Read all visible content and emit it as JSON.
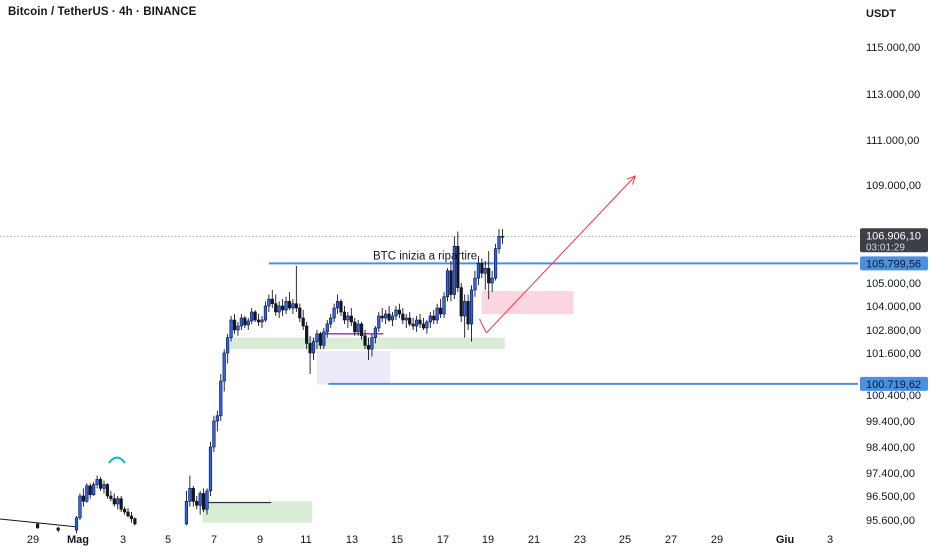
{
  "header": {
    "title": "Bitcoin / TetherUS · 4h · BINANCE",
    "currency": "USDT"
  },
  "colors": {
    "bull": "#2962ff",
    "bear": "#131722",
    "level_line": "#4a90e2",
    "level_tag_bg": "#4a90e2",
    "last_tag_bg": "#3c3f47",
    "arrow": "#f23645",
    "support_zone": "#d8ecd6",
    "supply_zone": "#fbd6e1",
    "range_zone": "#ece9f8",
    "range_line": "#9c27b0",
    "curve": "#00bcd4"
  },
  "chart_data": {
    "type": "candlestick",
    "symbol": "Bitcoin / TetherUS",
    "timeframe": "4h",
    "exchange": "BINANCE",
    "x_axis_ticks": [
      "29",
      "Mag",
      "3",
      "5",
      "7",
      "9",
      "11",
      "13",
      "15",
      "17",
      "19",
      "21",
      "23",
      "25",
      "27",
      "29",
      "Giu",
      "3"
    ],
    "y_axis_ticks": [
      "115.000,00",
      "113.000,00",
      "111.000,00",
      "109.000,00",
      "105.000,00",
      "104.000,00",
      "102.800,00",
      "101.600,00",
      "100.400,00",
      "99.400,00",
      "98.400,00",
      "97.400,00",
      "96.500,00",
      "95.600,00"
    ],
    "last_price": "106.906,10",
    "countdown": "03:01:29",
    "levels": [
      {
        "label": "105.799,56",
        "value": 105799.56
      },
      {
        "label": "100.719,62",
        "value": 100719.62
      }
    ],
    "annotation": "BTC inizia a ripartire",
    "zones": [
      {
        "name": "support-zone-low",
        "from_day": 7.4,
        "to_day": 12.2,
        "low": 95500,
        "high": 96300
      },
      {
        "name": "support-zone-mid",
        "from_day": 8.6,
        "to_day": 20.6,
        "low": 101800,
        "high": 102400
      },
      {
        "name": "supply-zone",
        "from_day": 19.6,
        "to_day": 23.6,
        "low": 103600,
        "high": 104650
      },
      {
        "name": "range-zone",
        "from_day": 12.4,
        "to_day": 15.6,
        "low": 100700,
        "high": 101700
      }
    ],
    "arrow": {
      "from": {
        "day": 19.8,
        "price": 102650
      },
      "to": {
        "day": 26.3,
        "price": 109400
      }
    },
    "candles": [
      {
        "d": 0.2,
        "o": 95450,
        "h": 95500,
        "l": 95280,
        "c": 95300
      },
      {
        "d": 1.1,
        "o": 95300,
        "h": 95350,
        "l": 95150,
        "c": 95220
      },
      {
        "d": 1.9,
        "o": 95220,
        "h": 95750,
        "l": 95100,
        "c": 95680
      },
      {
        "d": 2.05,
        "o": 95680,
        "h": 96600,
        "l": 95600,
        "c": 96500
      },
      {
        "d": 2.2,
        "o": 96500,
        "h": 96800,
        "l": 96100,
        "c": 96300
      },
      {
        "d": 2.35,
        "o": 96300,
        "h": 97000,
        "l": 96250,
        "c": 96900
      },
      {
        "d": 2.5,
        "o": 96900,
        "h": 97000,
        "l": 96400,
        "c": 96550
      },
      {
        "d": 2.65,
        "o": 96550,
        "h": 97050,
        "l": 96500,
        "c": 96950
      },
      {
        "d": 2.8,
        "o": 96950,
        "h": 97300,
        "l": 96800,
        "c": 97150
      },
      {
        "d": 2.95,
        "o": 97150,
        "h": 97250,
        "l": 96700,
        "c": 96800
      },
      {
        "d": 3.1,
        "o": 96800,
        "h": 97100,
        "l": 96600,
        "c": 96950
      },
      {
        "d": 3.25,
        "o": 96950,
        "h": 97000,
        "l": 96400,
        "c": 96500
      },
      {
        "d": 3.4,
        "o": 96500,
        "h": 96700,
        "l": 96300,
        "c": 96400
      },
      {
        "d": 3.55,
        "o": 96400,
        "h": 96600,
        "l": 96100,
        "c": 96200
      },
      {
        "d": 3.7,
        "o": 96200,
        "h": 96500,
        "l": 96000,
        "c": 96400
      },
      {
        "d": 3.85,
        "o": 96400,
        "h": 96500,
        "l": 95900,
        "c": 96000
      },
      {
        "d": 4.0,
        "o": 96000,
        "h": 96100,
        "l": 95800,
        "c": 95900
      },
      {
        "d": 4.15,
        "o": 95900,
        "h": 96050,
        "l": 95700,
        "c": 95750
      },
      {
        "d": 4.3,
        "o": 95750,
        "h": 95900,
        "l": 95500,
        "c": 95650
      },
      {
        "d": 4.45,
        "o": 95650,
        "h": 95700,
        "l": 95400,
        "c": 95450
      },
      {
        "d": 6.7,
        "o": 95450,
        "h": 96700,
        "l": 95400,
        "c": 96300
      },
      {
        "d": 6.85,
        "o": 96300,
        "h": 97300,
        "l": 96100,
        "c": 96800
      },
      {
        "d": 7.0,
        "o": 96800,
        "h": 96900,
        "l": 96100,
        "c": 96300
      },
      {
        "d": 7.15,
        "o": 96300,
        "h": 96500,
        "l": 96000,
        "c": 96150
      },
      {
        "d": 7.3,
        "o": 96150,
        "h": 96700,
        "l": 95800,
        "c": 96600
      },
      {
        "d": 7.45,
        "o": 96600,
        "h": 96800,
        "l": 95900,
        "c": 96000
      },
      {
        "d": 7.6,
        "o": 96000,
        "h": 96800,
        "l": 95800,
        "c": 96700
      },
      {
        "d": 7.75,
        "o": 96700,
        "h": 98600,
        "l": 96500,
        "c": 98400
      },
      {
        "d": 7.9,
        "o": 98400,
        "h": 99600,
        "l": 98200,
        "c": 99400
      },
      {
        "d": 8.05,
        "o": 99400,
        "h": 99800,
        "l": 99000,
        "c": 99600
      },
      {
        "d": 8.2,
        "o": 99600,
        "h": 101000,
        "l": 99400,
        "c": 100800
      },
      {
        "d": 8.35,
        "o": 100800,
        "h": 101800,
        "l": 100500,
        "c": 101600
      },
      {
        "d": 8.5,
        "o": 101600,
        "h": 102600,
        "l": 101300,
        "c": 102400
      },
      {
        "d": 8.65,
        "o": 102400,
        "h": 103500,
        "l": 102200,
        "c": 103300
      },
      {
        "d": 8.8,
        "o": 103300,
        "h": 103600,
        "l": 102600,
        "c": 102800
      },
      {
        "d": 8.95,
        "o": 102800,
        "h": 103200,
        "l": 102500,
        "c": 103000
      },
      {
        "d": 9.1,
        "o": 103000,
        "h": 103600,
        "l": 102800,
        "c": 103400
      },
      {
        "d": 9.25,
        "o": 103400,
        "h": 103500,
        "l": 102900,
        "c": 103050
      },
      {
        "d": 9.4,
        "o": 103050,
        "h": 103400,
        "l": 102800,
        "c": 103250
      },
      {
        "d": 9.55,
        "o": 103250,
        "h": 103900,
        "l": 103100,
        "c": 103700
      },
      {
        "d": 9.7,
        "o": 103700,
        "h": 103800,
        "l": 103200,
        "c": 103300
      },
      {
        "d": 9.85,
        "o": 103300,
        "h": 103600,
        "l": 103000,
        "c": 103200
      },
      {
        "d": 10.0,
        "o": 103200,
        "h": 103500,
        "l": 102900,
        "c": 103300
      },
      {
        "d": 10.15,
        "o": 103300,
        "h": 104200,
        "l": 103200,
        "c": 104000
      },
      {
        "d": 10.3,
        "o": 104000,
        "h": 104500,
        "l": 103700,
        "c": 104300
      },
      {
        "d": 10.45,
        "o": 104300,
        "h": 104700,
        "l": 103900,
        "c": 104100
      },
      {
        "d": 10.6,
        "o": 104100,
        "h": 104500,
        "l": 103500,
        "c": 103700
      },
      {
        "d": 10.75,
        "o": 103700,
        "h": 104200,
        "l": 103400,
        "c": 104000
      },
      {
        "d": 10.9,
        "o": 104000,
        "h": 104300,
        "l": 103500,
        "c": 103800
      },
      {
        "d": 11.05,
        "o": 103800,
        "h": 104400,
        "l": 103600,
        "c": 104200
      },
      {
        "d": 11.2,
        "o": 104200,
        "h": 104600,
        "l": 103800,
        "c": 103900
      },
      {
        "d": 11.35,
        "o": 103900,
        "h": 104300,
        "l": 103600,
        "c": 104100
      },
      {
        "d": 11.5,
        "o": 104100,
        "h": 105700,
        "l": 103700,
        "c": 103900
      },
      {
        "d": 11.65,
        "o": 103900,
        "h": 104100,
        "l": 103200,
        "c": 103400
      },
      {
        "d": 11.8,
        "o": 103400,
        "h": 103800,
        "l": 102800,
        "c": 103000
      },
      {
        "d": 11.95,
        "o": 103000,
        "h": 103200,
        "l": 101800,
        "c": 102100
      },
      {
        "d": 12.1,
        "o": 102100,
        "h": 102500,
        "l": 101000,
        "c": 101600
      },
      {
        "d": 12.25,
        "o": 101600,
        "h": 102400,
        "l": 101400,
        "c": 102200
      },
      {
        "d": 12.4,
        "o": 102200,
        "h": 102800,
        "l": 101800,
        "c": 102600
      },
      {
        "d": 12.55,
        "o": 102600,
        "h": 102700,
        "l": 101800,
        "c": 102000
      },
      {
        "d": 12.7,
        "o": 102000,
        "h": 102900,
        "l": 101800,
        "c": 102700
      },
      {
        "d": 12.85,
        "o": 102700,
        "h": 103300,
        "l": 102400,
        "c": 103100
      },
      {
        "d": 13.0,
        "o": 103100,
        "h": 103600,
        "l": 102900,
        "c": 103400
      },
      {
        "d": 13.15,
        "o": 103400,
        "h": 104100,
        "l": 103200,
        "c": 103900
      },
      {
        "d": 13.3,
        "o": 103900,
        "h": 104500,
        "l": 103600,
        "c": 104200
      },
      {
        "d": 13.45,
        "o": 104200,
        "h": 104300,
        "l": 103500,
        "c": 103700
      },
      {
        "d": 13.6,
        "o": 103700,
        "h": 104000,
        "l": 103100,
        "c": 103300
      },
      {
        "d": 13.75,
        "o": 103300,
        "h": 103700,
        "l": 102900,
        "c": 103500
      },
      {
        "d": 13.9,
        "o": 103500,
        "h": 103900,
        "l": 103000,
        "c": 103200
      },
      {
        "d": 14.05,
        "o": 103200,
        "h": 103400,
        "l": 102500,
        "c": 102700
      },
      {
        "d": 14.2,
        "o": 102700,
        "h": 103300,
        "l": 102500,
        "c": 103100
      },
      {
        "d": 14.35,
        "o": 103100,
        "h": 103200,
        "l": 102300,
        "c": 102500
      },
      {
        "d": 14.5,
        "o": 102500,
        "h": 102800,
        "l": 101800,
        "c": 102000
      },
      {
        "d": 14.65,
        "o": 102000,
        "h": 102400,
        "l": 101400,
        "c": 101800
      },
      {
        "d": 14.8,
        "o": 101800,
        "h": 102600,
        "l": 101500,
        "c": 102400
      },
      {
        "d": 14.95,
        "o": 102400,
        "h": 103000,
        "l": 102100,
        "c": 102900
      },
      {
        "d": 15.1,
        "o": 102900,
        "h": 103700,
        "l": 102700,
        "c": 103500
      },
      {
        "d": 15.25,
        "o": 103500,
        "h": 103900,
        "l": 103200,
        "c": 103400
      },
      {
        "d": 15.4,
        "o": 103400,
        "h": 103800,
        "l": 103100,
        "c": 103600
      },
      {
        "d": 15.55,
        "o": 103600,
        "h": 104000,
        "l": 103200,
        "c": 103300
      },
      {
        "d": 15.7,
        "o": 103300,
        "h": 103700,
        "l": 103000,
        "c": 103500
      },
      {
        "d": 15.85,
        "o": 103500,
        "h": 104000,
        "l": 103300,
        "c": 103800
      },
      {
        "d": 16.0,
        "o": 103800,
        "h": 104100,
        "l": 103400,
        "c": 103600
      },
      {
        "d": 16.15,
        "o": 103600,
        "h": 103900,
        "l": 103100,
        "c": 103300
      },
      {
        "d": 16.3,
        "o": 103300,
        "h": 103600,
        "l": 102900,
        "c": 103400
      },
      {
        "d": 16.45,
        "o": 103400,
        "h": 103700,
        "l": 103000,
        "c": 103100
      },
      {
        "d": 16.6,
        "o": 103100,
        "h": 103400,
        "l": 102800,
        "c": 103000
      },
      {
        "d": 16.75,
        "o": 103000,
        "h": 103500,
        "l": 102700,
        "c": 103300
      },
      {
        "d": 16.9,
        "o": 103300,
        "h": 103600,
        "l": 102900,
        "c": 103100
      },
      {
        "d": 17.05,
        "o": 103100,
        "h": 103400,
        "l": 102800,
        "c": 102900
      },
      {
        "d": 17.2,
        "o": 102900,
        "h": 103300,
        "l": 102600,
        "c": 103200
      },
      {
        "d": 17.35,
        "o": 103200,
        "h": 103700,
        "l": 102900,
        "c": 103500
      },
      {
        "d": 17.5,
        "o": 103500,
        "h": 103800,
        "l": 103100,
        "c": 103300
      },
      {
        "d": 17.65,
        "o": 103300,
        "h": 104100,
        "l": 103100,
        "c": 103900
      },
      {
        "d": 17.8,
        "o": 103900,
        "h": 104300,
        "l": 103400,
        "c": 103600
      },
      {
        "d": 17.95,
        "o": 103600,
        "h": 104600,
        "l": 103400,
        "c": 104400
      },
      {
        "d": 18.1,
        "o": 104400,
        "h": 105600,
        "l": 104200,
        "c": 105500
      },
      {
        "d": 18.25,
        "o": 105500,
        "h": 105900,
        "l": 104200,
        "c": 104500
      },
      {
        "d": 18.4,
        "o": 104500,
        "h": 106900,
        "l": 104300,
        "c": 106500
      },
      {
        "d": 18.55,
        "o": 106500,
        "h": 107100,
        "l": 104600,
        "c": 104800
      },
      {
        "d": 18.7,
        "o": 104800,
        "h": 105000,
        "l": 103200,
        "c": 103500
      },
      {
        "d": 18.85,
        "o": 103500,
        "h": 104500,
        "l": 102400,
        "c": 104200
      },
      {
        "d": 19.0,
        "o": 104200,
        "h": 104500,
        "l": 102800,
        "c": 103100
      },
      {
        "d": 19.15,
        "o": 103100,
        "h": 104900,
        "l": 102200,
        "c": 104700
      },
      {
        "d": 19.3,
        "o": 104700,
        "h": 105500,
        "l": 104400,
        "c": 105200
      },
      {
        "d": 19.45,
        "o": 105200,
        "h": 106100,
        "l": 104900,
        "c": 105800
      },
      {
        "d": 19.6,
        "o": 105800,
        "h": 106000,
        "l": 105200,
        "c": 105400
      },
      {
        "d": 19.75,
        "o": 105400,
        "h": 105900,
        "l": 104700,
        "c": 105600
      },
      {
        "d": 19.9,
        "o": 105600,
        "h": 106300,
        "l": 104300,
        "c": 105000
      },
      {
        "d": 20.05,
        "o": 105000,
        "h": 105500,
        "l": 104600,
        "c": 105200
      },
      {
        "d": 20.2,
        "o": 105200,
        "h": 106600,
        "l": 105100,
        "c": 106400
      },
      {
        "d": 20.35,
        "o": 106400,
        "h": 107200,
        "l": 106200,
        "c": 106900
      },
      {
        "d": 20.5,
        "o": 106900,
        "h": 107200,
        "l": 106600,
        "c": 106906
      }
    ]
  }
}
